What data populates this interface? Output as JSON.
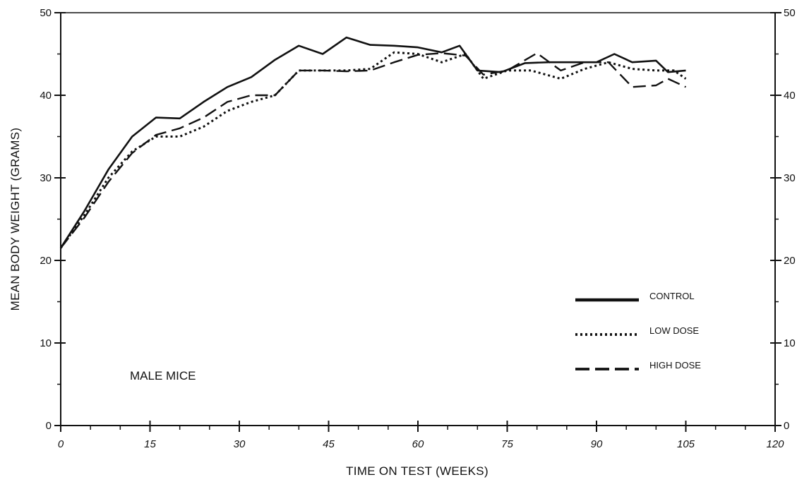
{
  "chart_data": {
    "type": "line",
    "title": "",
    "xlabel": "TIME ON TEST (WEEKS)",
    "ylabel": "MEAN BODY WEIGHT (GRAMS)",
    "xlim": [
      0,
      120
    ],
    "ylim": [
      0,
      50
    ],
    "x_ticks": [
      0,
      15,
      30,
      45,
      60,
      75,
      90,
      105,
      120
    ],
    "x_tick_labels": [
      "0",
      "15",
      "30",
      "45",
      "60",
      "75",
      "90",
      "105",
      "120"
    ],
    "x_minor_step": 5,
    "y_ticks": [
      0,
      10,
      20,
      30,
      40,
      50
    ],
    "y_tick_labels": [
      "0",
      "10",
      "20",
      "30",
      "40",
      "50"
    ],
    "y_minor_step": 5,
    "right_axis_mirrored": true,
    "grid": false,
    "legend_position": "right",
    "annotation": "MALE MICE",
    "series": [
      {
        "name": "CONTROL",
        "style": "solid",
        "color": "#111111",
        "x": [
          0,
          4,
          8,
          12,
          16,
          20,
          24,
          28,
          32,
          36,
          40,
          44,
          48,
          52,
          56,
          60,
          64,
          67,
          70,
          74,
          78,
          82,
          86,
          90,
          93,
          96,
          100,
          102,
          105
        ],
        "y": [
          21.5,
          26,
          31,
          35,
          37.3,
          37.2,
          39.2,
          41,
          42.2,
          44.3,
          46,
          45,
          47,
          46.1,
          46,
          45.8,
          45.2,
          46,
          43,
          42.8,
          43.9,
          44,
          44,
          44,
          45,
          44,
          44.2,
          42.8,
          43
        ]
      },
      {
        "name": "LOW DOSE",
        "style": "dotted",
        "color": "#111111",
        "x": [
          0,
          4,
          8,
          12,
          16,
          20,
          24,
          28,
          32,
          36,
          40,
          44,
          48,
          52,
          56,
          60,
          64,
          68,
          71,
          75,
          79,
          84,
          88,
          92,
          96,
          100,
          103,
          105
        ],
        "y": [
          21.5,
          25.5,
          30,
          33.2,
          35,
          35,
          36.2,
          38.1,
          39.2,
          40,
          43,
          43,
          43,
          43.2,
          45.2,
          45,
          44,
          45,
          42,
          43,
          43,
          42,
          43.2,
          44,
          43.2,
          43,
          43,
          42
        ]
      },
      {
        "name": "HIGH DOSE",
        "style": "dashed",
        "color": "#111111",
        "x": [
          0,
          4,
          8,
          12,
          16,
          20,
          24,
          28,
          32,
          36,
          40,
          44,
          48,
          52,
          56,
          60,
          64,
          68,
          71,
          75,
          80,
          84,
          88,
          92,
          96,
          100,
          102,
          105
        ],
        "y": [
          21.5,
          25.2,
          29.5,
          33,
          35.2,
          36,
          37.3,
          39.2,
          40,
          40,
          43,
          43,
          42.9,
          43,
          44,
          44.9,
          45.1,
          44.8,
          42.5,
          43,
          45.1,
          43,
          44,
          44,
          41,
          41.2,
          42,
          41
        ]
      }
    ]
  }
}
